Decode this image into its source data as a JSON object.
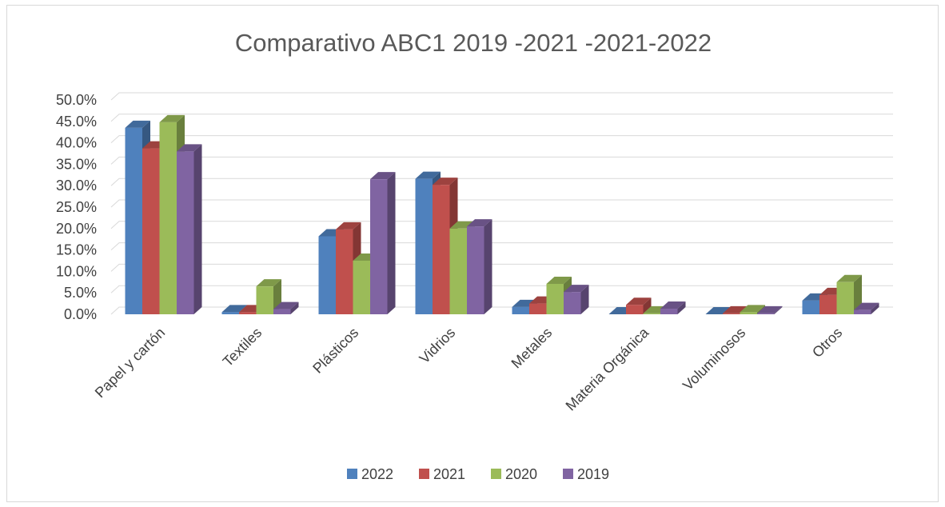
{
  "chart_data": {
    "type": "bar",
    "title": "Comparativo  ABC1 2019 -2021 -2021-2022",
    "xlabel": "",
    "ylabel": "",
    "ylim": [
      0,
      0.5
    ],
    "ytick_labels": [
      "0.0%",
      "5.0%",
      "10.0%",
      "15.0%",
      "20.0%",
      "25.0%",
      "30.0%",
      "35.0%",
      "40.0%",
      "45.0%",
      "50.0%"
    ],
    "grid": true,
    "legend_position": "bottom",
    "categories": [
      "Papel y cartón",
      "Textiles",
      "Plásticos",
      "Vidrios",
      "Metales",
      "Materia Orgánica",
      "Voluminosos",
      "Otros"
    ],
    "series": [
      {
        "name": "2022",
        "color": "#4f81bd",
        "values": [
          0.435,
          0.005,
          0.182,
          0.316,
          0.017,
          0.0,
          0.0,
          0.032
        ]
      },
      {
        "name": "2021",
        "color": "#c0504d",
        "values": [
          0.387,
          0.005,
          0.198,
          0.302,
          0.025,
          0.022,
          0.002,
          0.045
        ]
      },
      {
        "name": "2020",
        "color": "#9bbb59",
        "values": [
          0.448,
          0.065,
          0.125,
          0.2,
          0.071,
          0.002,
          0.005,
          0.075
        ]
      },
      {
        "name": "2019",
        "color": "#8064a2",
        "values": [
          0.38,
          0.012,
          0.315,
          0.205,
          0.052,
          0.013,
          0.002,
          0.01
        ]
      }
    ]
  }
}
